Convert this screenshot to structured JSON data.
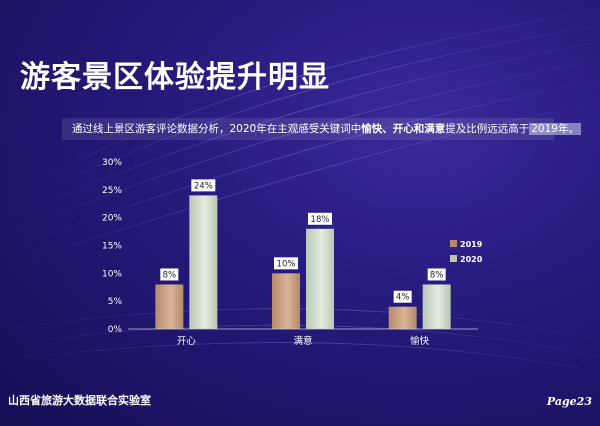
{
  "title": "游客景区体验提升明显",
  "description": {
    "part1": "通过线上景区游客评论数据分析，2020年在主观感受关键词中",
    "highlight": "愉快、开心和满意",
    "part2": "提及比例远远高于",
    "tail": "2019年。"
  },
  "footer": {
    "org": "山西省旅游大数据联合实验室",
    "page": "Page23"
  },
  "colors": {
    "series_2019": "#b5896a",
    "series_2020": "#b9c7b4",
    "axis_text": "#ffffff"
  },
  "chart_data": {
    "type": "bar",
    "categories": [
      "开心",
      "满意",
      "愉快"
    ],
    "series": [
      {
        "name": "2019",
        "values": [
          8,
          10,
          4
        ],
        "labels": [
          "8%",
          "10%",
          "4%"
        ]
      },
      {
        "name": "2020",
        "values": [
          24,
          18,
          8
        ],
        "labels": [
          "24%",
          "18%",
          "8%"
        ]
      }
    ],
    "ylim": [
      0,
      30
    ],
    "yticks": [
      "0%",
      "5%",
      "10%",
      "15%",
      "20%",
      "25%",
      "30%"
    ],
    "legend": "right",
    "grid": false
  }
}
